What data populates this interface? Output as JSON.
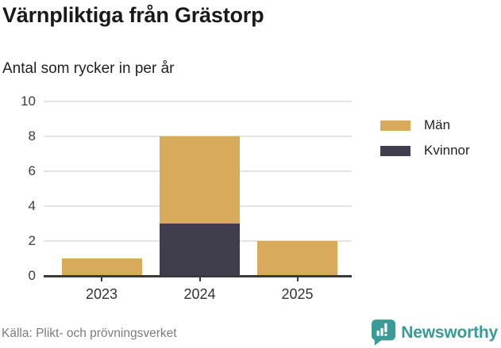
{
  "header": {
    "title": "Värnpliktiga från Grästorp",
    "subtitle": "Antal som rycker in per år"
  },
  "chart_data": {
    "type": "bar",
    "stacked": true,
    "title": "Värnpliktiga från Grästorp",
    "subtitle": "Antal som rycker in per år",
    "categories": [
      "2023",
      "2024",
      "2025"
    ],
    "series": [
      {
        "name": "Män",
        "color": "#d8ab5c",
        "values": [
          1,
          5,
          2
        ]
      },
      {
        "name": "Kvinnor",
        "color": "#403e4c",
        "values": [
          0,
          3,
          0
        ]
      }
    ],
    "stack_bottom_to_top": [
      "Kvinnor",
      "Män"
    ],
    "totals": [
      1,
      8,
      2
    ],
    "xlabel": "",
    "ylabel": "",
    "ylim": [
      0,
      10
    ],
    "yticks": [
      0,
      2,
      4,
      6,
      8,
      10
    ],
    "grid": true,
    "legend_position": "top-right"
  },
  "legend": {
    "items": [
      {
        "label": "Män",
        "color": "#d8ab5c"
      },
      {
        "label": "Kvinnor",
        "color": "#403e4c"
      }
    ]
  },
  "footer": {
    "source": "Källa: Plikt- och prövningsverket",
    "brand": "Newsworthy",
    "brand_color": "#399a98"
  },
  "colors": {
    "grid_line": "#e4e4e4",
    "axis_line": "#3a3a3a",
    "title_text": "#1a1a1a",
    "tick_text": "#3d3d3d",
    "source_text": "#7c7c7c"
  }
}
